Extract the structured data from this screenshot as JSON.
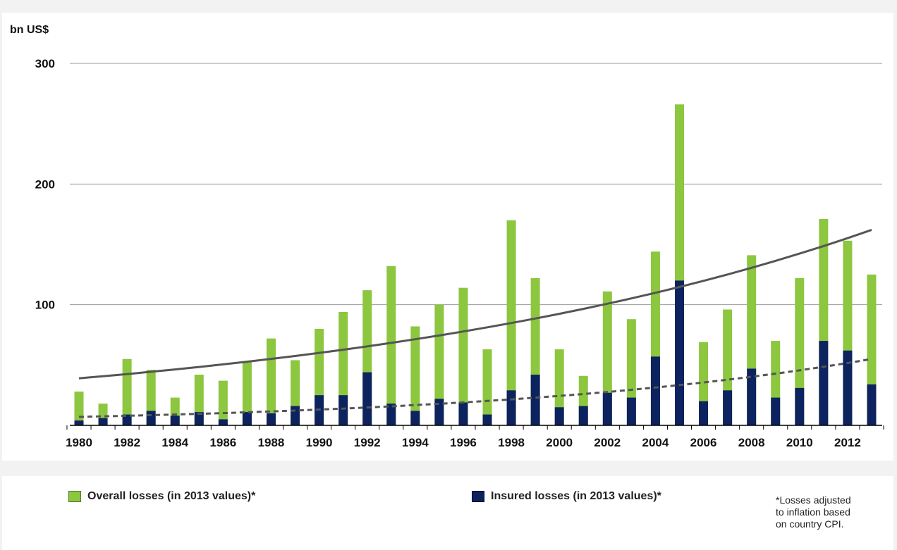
{
  "colors": {
    "overall": "#8dc63f",
    "insured": "#0d2360",
    "trend_overall": "#555555",
    "trend_insured": "#555555",
    "grid": "#9a9a9a"
  },
  "legend": {
    "overall_label": "Overall losses (in 2013 values)*",
    "insured_label": "Insured losses (in 2013 values)*"
  },
  "footnote": "*Losses adjusted\n to inflation based\n on country CPI.",
  "chart_data": {
    "type": "bar",
    "unit_label": "bn US$",
    "ylim": [
      0,
      300
    ],
    "yticks": [
      100,
      200,
      300
    ],
    "grid": true,
    "legend_position": "bottom",
    "x_tick_labels": [
      "1980",
      "1982",
      "1984",
      "1986",
      "1988",
      "1990",
      "1992",
      "1994",
      "1996",
      "1998",
      "2000",
      "2002",
      "2004",
      "2006",
      "2008",
      "2010",
      "2012"
    ],
    "categories": [
      "1980",
      "1981",
      "1982",
      "1983",
      "1984",
      "1985",
      "1986",
      "1987",
      "1988",
      "1989",
      "1990",
      "1991",
      "1992",
      "1993",
      "1994",
      "1995",
      "1996",
      "1997",
      "1998",
      "1999",
      "2000",
      "2001",
      "2002",
      "2003",
      "2004",
      "2005",
      "2006",
      "2007",
      "2008",
      "2009",
      "2010",
      "2011",
      "2012",
      "2013"
    ],
    "series": [
      {
        "name": "Overall losses (in 2013 values)*",
        "values": [
          28,
          18,
          55,
          46,
          23,
          42,
          37,
          53,
          72,
          54,
          80,
          94,
          112,
          132,
          82,
          100,
          114,
          63,
          170,
          122,
          63,
          41,
          111,
          88,
          144,
          266,
          69,
          96,
          141,
          70,
          122,
          171,
          153,
          125
        ]
      },
      {
        "name": "Insured losses (in 2013 values)*",
        "values": [
          4,
          6,
          9,
          12,
          8,
          11,
          5,
          11,
          10,
          16,
          25,
          25,
          44,
          18,
          12,
          22,
          19,
          9,
          29,
          42,
          15,
          16,
          27,
          23,
          57,
          120,
          20,
          29,
          47,
          23,
          31,
          70,
          62,
          34
        ]
      }
    ],
    "trend_overall": {
      "start": 39,
      "end": 162
    },
    "trend_insured": {
      "start": 7,
      "end": 55
    }
  }
}
